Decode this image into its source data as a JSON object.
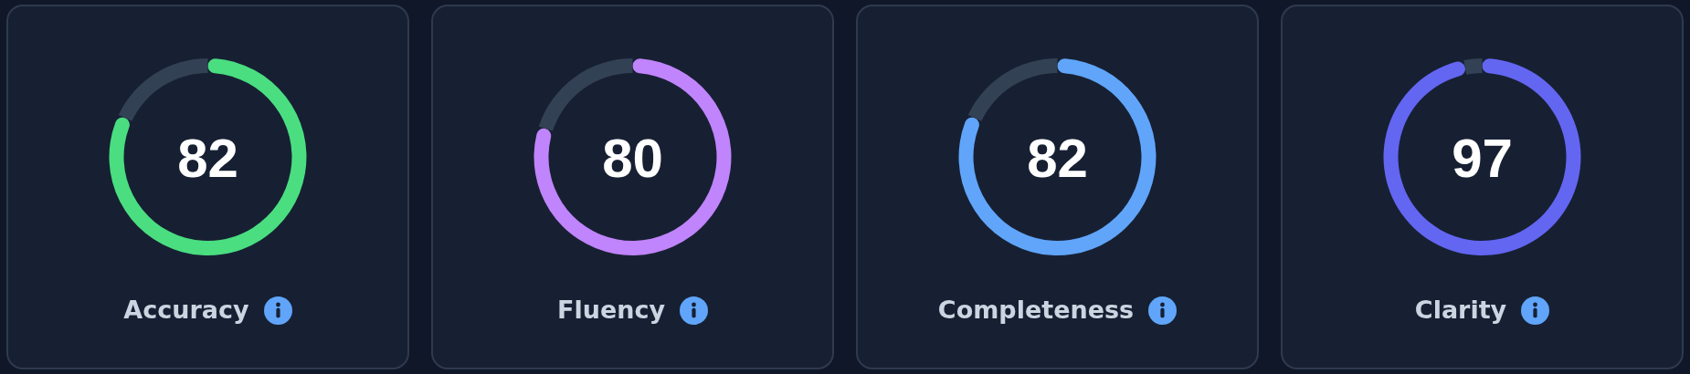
{
  "chart_data": [
    {
      "type": "donut",
      "title": "Accuracy",
      "categories": [
        null,
        null
      ],
      "values": [
        82,
        18
      ],
      "colors": [
        "#4ade80",
        "#334155"
      ],
      "value_labels": [
        "82",
        null
      ]
    },
    {
      "type": "donut",
      "title": "Fluency",
      "categories": [
        null,
        null
      ],
      "values": [
        80,
        20
      ],
      "colors": [
        "#c084fc",
        "#334155"
      ],
      "value_labels": [
        "80",
        null
      ]
    },
    {
      "type": "donut",
      "title": "Completeness",
      "categories": [
        null,
        null
      ],
      "values": [
        82,
        18
      ],
      "colors": [
        "#60a5fa",
        "#334155"
      ],
      "value_labels": [
        "82",
        null
      ]
    },
    {
      "type": "donut",
      "title": "Clarity",
      "categories": [
        null,
        null
      ],
      "values": [
        97,
        3
      ],
      "colors": [
        "#6366f1",
        "#334155"
      ],
      "value_labels": [
        "97",
        null
      ]
    }
  ]
}
